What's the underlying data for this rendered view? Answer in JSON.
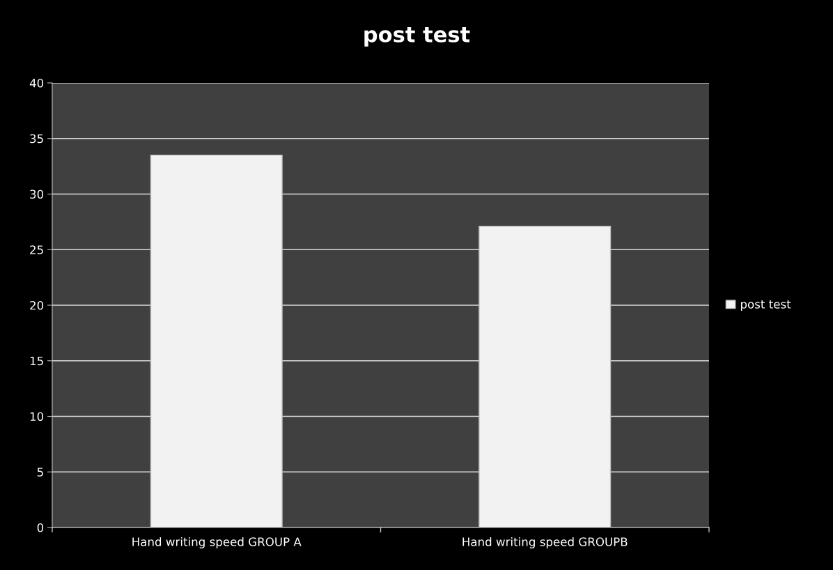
{
  "chart_data": {
    "type": "bar",
    "title": "post test",
    "categories": [
      "Hand writing speed GROUP A",
      "Hand writing speed GROUPB"
    ],
    "series": [
      {
        "name": "post test",
        "color": "#f2f2f2",
        "values": [
          33.5,
          27.1
        ]
      }
    ],
    "ylim": [
      0,
      40
    ],
    "yticks": [
      0,
      5,
      10,
      15,
      20,
      25,
      30,
      35,
      40
    ],
    "grid": "y",
    "legend": "right"
  }
}
